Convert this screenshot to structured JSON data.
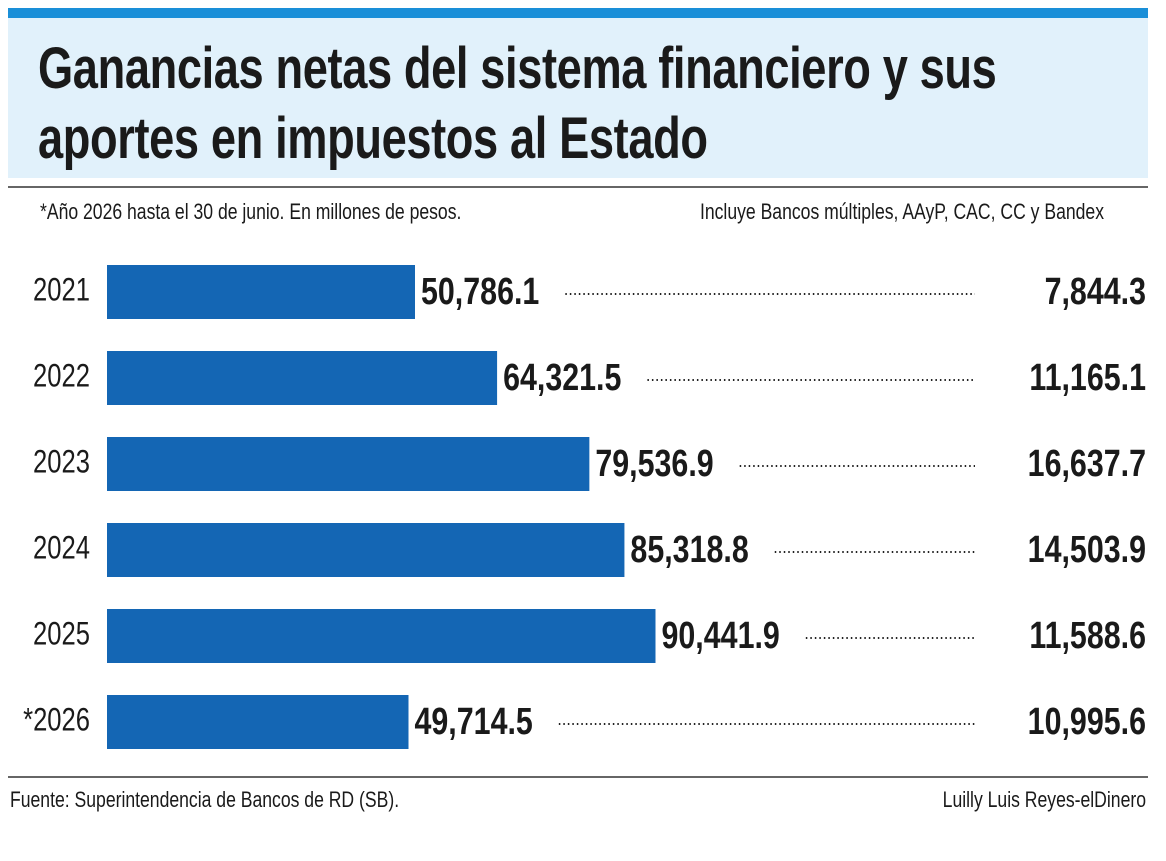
{
  "chart_data": {
    "type": "bar",
    "title": "Ganancias netas del sistema financiero y sus aportes en impuestos al Estado",
    "subtitle": "*Año 2026 hasta el 30 de junio. En millones de pesos.",
    "note": "Incluye Bancos múltiples, AAyP, CAC, CC y Bandex",
    "categories": [
      "2021",
      "2022",
      "2023",
      "2024",
      "2025",
      "*2026"
    ],
    "values": [
      50786.1,
      64321.5,
      79536.9,
      85318.8,
      90441.9,
      49714.5
    ],
    "value_labels": [
      "50,786.1",
      "64,321.5",
      "79,536.9",
      "85,318.8",
      "90,441.9",
      "49,714.5"
    ],
    "tax_values": [
      7844.3,
      11165.1,
      16637.7,
      14503.9,
      11588.6,
      10995.6
    ],
    "tax_value_labels": [
      "7,844.3",
      "11,165.1",
      "16,637.7",
      "14,503.9",
      "11,588.6",
      "10,995.6"
    ],
    "color": "#1466b4",
    "source": "Fuente: Superintendencia de Bancos de RD (SB).",
    "credit": "Luilly Luis Reyes-elDinero"
  }
}
